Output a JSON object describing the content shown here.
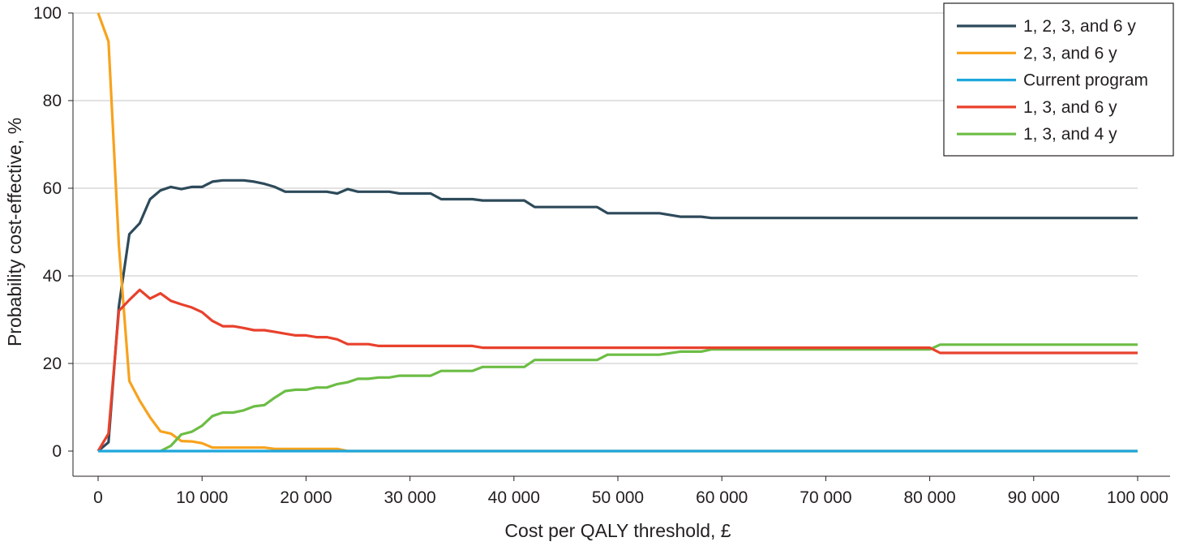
{
  "chart_data": {
    "type": "line",
    "title": "",
    "xlabel": "Cost per QALY threshold, £",
    "ylabel": "Probability cost-effective, %",
    "xlim": [
      0,
      100000
    ],
    "ylim": [
      0,
      100
    ],
    "x_ticks": [
      0,
      10000,
      20000,
      30000,
      40000,
      50000,
      60000,
      70000,
      80000,
      90000,
      100000
    ],
    "x_tick_labels": [
      "0",
      "10 000",
      "20 000",
      "30 000",
      "40 000",
      "50 000",
      "60 000",
      "70 000",
      "80 000",
      "90 000",
      "100 000"
    ],
    "y_ticks": [
      0,
      20,
      40,
      60,
      80,
      100
    ],
    "y_tick_labels": [
      "0",
      "20",
      "40",
      "60",
      "80",
      "100"
    ],
    "grid": "horizontal",
    "legend_position": "top-right",
    "series": [
      {
        "name": "1, 2, 3, and 6 y",
        "color": "#2d4a5a",
        "points": [
          [
            0,
            0
          ],
          [
            1000,
            2
          ],
          [
            2000,
            33
          ],
          [
            3000,
            49.5
          ],
          [
            4000,
            52
          ],
          [
            5000,
            57.5
          ],
          [
            6000,
            59.5
          ],
          [
            7000,
            60.3
          ],
          [
            8000,
            59.8
          ],
          [
            9000,
            60.3
          ],
          [
            10000,
            60.3
          ],
          [
            11000,
            61.5
          ],
          [
            12000,
            61.8
          ],
          [
            13000,
            61.8
          ],
          [
            14000,
            61.8
          ],
          [
            15000,
            61.5
          ],
          [
            16000,
            61
          ],
          [
            17000,
            60.3
          ],
          [
            18000,
            59.2
          ],
          [
            19000,
            59.2
          ],
          [
            20000,
            59.2
          ],
          [
            21000,
            59.2
          ],
          [
            22000,
            59.2
          ],
          [
            23000,
            58.8
          ],
          [
            24000,
            59.8
          ],
          [
            25000,
            59.2
          ],
          [
            26000,
            59.2
          ],
          [
            27000,
            59.2
          ],
          [
            28000,
            59.2
          ],
          [
            29000,
            58.8
          ],
          [
            30000,
            58.8
          ],
          [
            32000,
            58.8
          ],
          [
            33000,
            57.5
          ],
          [
            34000,
            57.5
          ],
          [
            36000,
            57.5
          ],
          [
            37000,
            57.2
          ],
          [
            41000,
            57.2
          ],
          [
            42000,
            55.7
          ],
          [
            48000,
            55.7
          ],
          [
            49000,
            54.3
          ],
          [
            54000,
            54.3
          ],
          [
            56000,
            53.5
          ],
          [
            58000,
            53.5
          ],
          [
            59000,
            53.2
          ],
          [
            100000,
            53.2
          ]
        ]
      },
      {
        "name": "2, 3, and 6 y",
        "color": "#f7a21d",
        "points": [
          [
            0,
            100
          ],
          [
            1000,
            93.5
          ],
          [
            2000,
            47
          ],
          [
            3000,
            16
          ],
          [
            4000,
            11.5
          ],
          [
            5000,
            7.7
          ],
          [
            6000,
            4.5
          ],
          [
            7000,
            4
          ],
          [
            8000,
            2.3
          ],
          [
            9000,
            2.2
          ],
          [
            10000,
            1.8
          ],
          [
            11000,
            0.8
          ],
          [
            12000,
            0.8
          ],
          [
            16000,
            0.8
          ],
          [
            17000,
            0.5
          ],
          [
            23000,
            0.5
          ],
          [
            24000,
            0
          ],
          [
            100000,
            0
          ]
        ]
      },
      {
        "name": "Current program",
        "color": "#1ea7dc",
        "points": [
          [
            0,
            0
          ],
          [
            100000,
            0
          ]
        ]
      },
      {
        "name": "1, 3, and 6 y",
        "color": "#e8412c",
        "points": [
          [
            0,
            0
          ],
          [
            1000,
            4
          ],
          [
            2000,
            32
          ],
          [
            3000,
            34.5
          ],
          [
            4000,
            36.8
          ],
          [
            5000,
            34.8
          ],
          [
            6000,
            36
          ],
          [
            7000,
            34.3
          ],
          [
            8000,
            33.5
          ],
          [
            9000,
            32.8
          ],
          [
            10000,
            31.7
          ],
          [
            11000,
            29.7
          ],
          [
            12000,
            28.5
          ],
          [
            13000,
            28.5
          ],
          [
            14000,
            28.1
          ],
          [
            15000,
            27.6
          ],
          [
            16000,
            27.6
          ],
          [
            17000,
            27.2
          ],
          [
            18000,
            26.8
          ],
          [
            19000,
            26.4
          ],
          [
            20000,
            26.4
          ],
          [
            21000,
            26
          ],
          [
            22000,
            26
          ],
          [
            23000,
            25.5
          ],
          [
            24000,
            24.4
          ],
          [
            26000,
            24.4
          ],
          [
            27000,
            24
          ],
          [
            36000,
            24
          ],
          [
            37000,
            23.6
          ],
          [
            80000,
            23.6
          ],
          [
            81000,
            22.4
          ],
          [
            100000,
            22.4
          ]
        ]
      },
      {
        "name": "1, 3, and 4 y",
        "color": "#6cbd45",
        "points": [
          [
            6000,
            0
          ],
          [
            7000,
            1.2
          ],
          [
            8000,
            3.8
          ],
          [
            9000,
            4.4
          ],
          [
            10000,
            5.8
          ],
          [
            11000,
            8
          ],
          [
            12000,
            8.8
          ],
          [
            13000,
            8.8
          ],
          [
            14000,
            9.3
          ],
          [
            15000,
            10.2
          ],
          [
            16000,
            10.5
          ],
          [
            17000,
            12.2
          ],
          [
            18000,
            13.7
          ],
          [
            19000,
            14
          ],
          [
            20000,
            14
          ],
          [
            21000,
            14.5
          ],
          [
            22000,
            14.5
          ],
          [
            23000,
            15.3
          ],
          [
            24000,
            15.7
          ],
          [
            25000,
            16.5
          ],
          [
            26000,
            16.5
          ],
          [
            27000,
            16.8
          ],
          [
            28000,
            16.8
          ],
          [
            29000,
            17.2
          ],
          [
            32000,
            17.2
          ],
          [
            33000,
            18.3
          ],
          [
            36000,
            18.3
          ],
          [
            37000,
            19.2
          ],
          [
            41000,
            19.2
          ],
          [
            42000,
            20.8
          ],
          [
            48000,
            20.8
          ],
          [
            49000,
            22
          ],
          [
            54000,
            22
          ],
          [
            56000,
            22.7
          ],
          [
            58000,
            22.7
          ],
          [
            59000,
            23.2
          ],
          [
            80000,
            23.2
          ],
          [
            81000,
            24.3
          ],
          [
            100000,
            24.3
          ]
        ]
      }
    ]
  }
}
